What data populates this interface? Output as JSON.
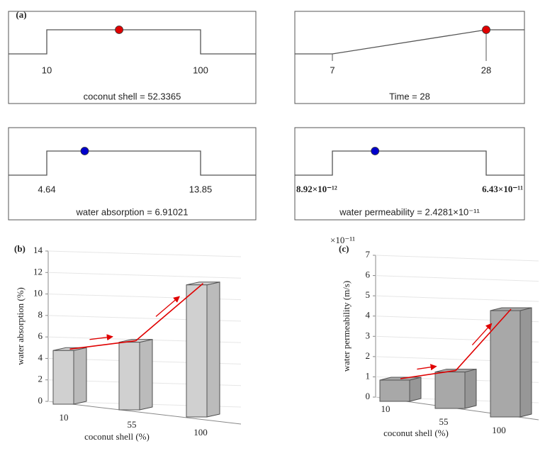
{
  "chart_data": [
    {
      "type": "ramp",
      "title": "(a)",
      "shape": "hat",
      "caption": "coconut shell  = 52.3365",
      "value": 52.3365,
      "xlim": [
        10,
        100
      ],
      "xticks": [
        10,
        100
      ],
      "color": "#e00000"
    },
    {
      "type": "ramp",
      "shape": "rise",
      "caption": "Time = 28",
      "value": 28,
      "xlim": [
        7,
        28
      ],
      "xticks": [
        7,
        28
      ],
      "color": "#e00000"
    },
    {
      "type": "ramp",
      "shape": "hat",
      "caption": "water absorption  = 6.91021",
      "value": 6.91021,
      "xlim": [
        4.64,
        13.85
      ],
      "xticks": [
        4.64,
        13.85
      ],
      "color": "#0000cc"
    },
    {
      "type": "ramp",
      "shape": "hat",
      "caption": "water permeability  = 2.4281×10⁻¹¹",
      "value": 2.4281e-11,
      "xlim": [
        8.92e-12,
        6.43e-11
      ],
      "xticks": [
        {
          "value": 8.92e-12,
          "label": "8.92×10⁻¹²"
        },
        {
          "value": 6.43e-11,
          "label": "6.43×10⁻¹¹"
        }
      ],
      "color": "#0000cc"
    },
    {
      "type": "bar3d",
      "title": "(b)",
      "categories": [
        "10",
        "55",
        "100"
      ],
      "values": [
        5,
        6.3,
        12.3
      ],
      "ylim": [
        0,
        14
      ],
      "yticks": [
        0,
        2,
        4,
        6,
        8,
        10,
        12,
        14
      ],
      "ylabel": "water absorption  (%)",
      "xlabel": "coconut shell (%)",
      "color": "#d0d0d0",
      "grid": true
    },
    {
      "type": "bar3d",
      "title": "(c)",
      "categories": [
        "10",
        "55",
        "100"
      ],
      "values": [
        1.05,
        1.8,
        5.25
      ],
      "ylim": [
        0,
        7
      ],
      "yticks": [
        0,
        1,
        2,
        3,
        4,
        5,
        6,
        7
      ],
      "axis_multiplier": "×10⁻¹¹",
      "ylabel": "water permeability (m/s)",
      "xlabel": "coconut shell (%)",
      "color": "#a8a8a8",
      "grid": true
    }
  ]
}
